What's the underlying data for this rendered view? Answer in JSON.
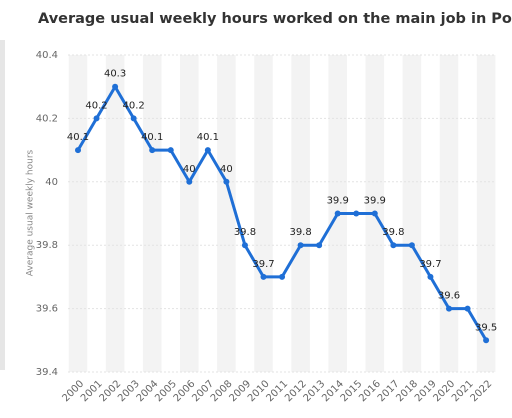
{
  "chart_data": {
    "type": "line",
    "title": "Average usual weekly hours worked on the main job in Poland",
    "y_label": "Average usual weekly hours",
    "categories": [
      "2000",
      "2001",
      "2002",
      "2003",
      "2004",
      "2005",
      "2006",
      "2007",
      "2008",
      "2009",
      "2010",
      "2011",
      "2012",
      "2013",
      "2014",
      "2015",
      "2016",
      "2017",
      "2018",
      "2019",
      "2020",
      "2021",
      "2022"
    ],
    "series": [
      {
        "name": "Average usual weekly hours",
        "color": "#1f6fd6",
        "values": [
          40.1,
          40.2,
          40.3,
          40.2,
          40.1,
          40.1,
          40.0,
          40.1,
          40.0,
          39.8,
          39.7,
          39.7,
          39.8,
          39.8,
          39.9,
          39.9,
          39.9,
          39.8,
          39.8,
          39.7,
          39.6,
          39.6,
          39.5
        ],
        "value_labels": [
          "40.1",
          "40.2",
          "40.3",
          "40.2",
          "40.1",
          null,
          "40",
          "40.1",
          "40",
          "39.8",
          "39.7",
          null,
          "39.8",
          null,
          "39.9",
          null,
          "39.9",
          "39.8",
          null,
          "39.7",
          "39.6",
          null,
          "39.5"
        ]
      }
    ],
    "ylim": [
      39.4,
      40.4
    ],
    "yticks": [
      39.4,
      39.6,
      39.8,
      40,
      40.2,
      40.4
    ],
    "grid": true
  }
}
